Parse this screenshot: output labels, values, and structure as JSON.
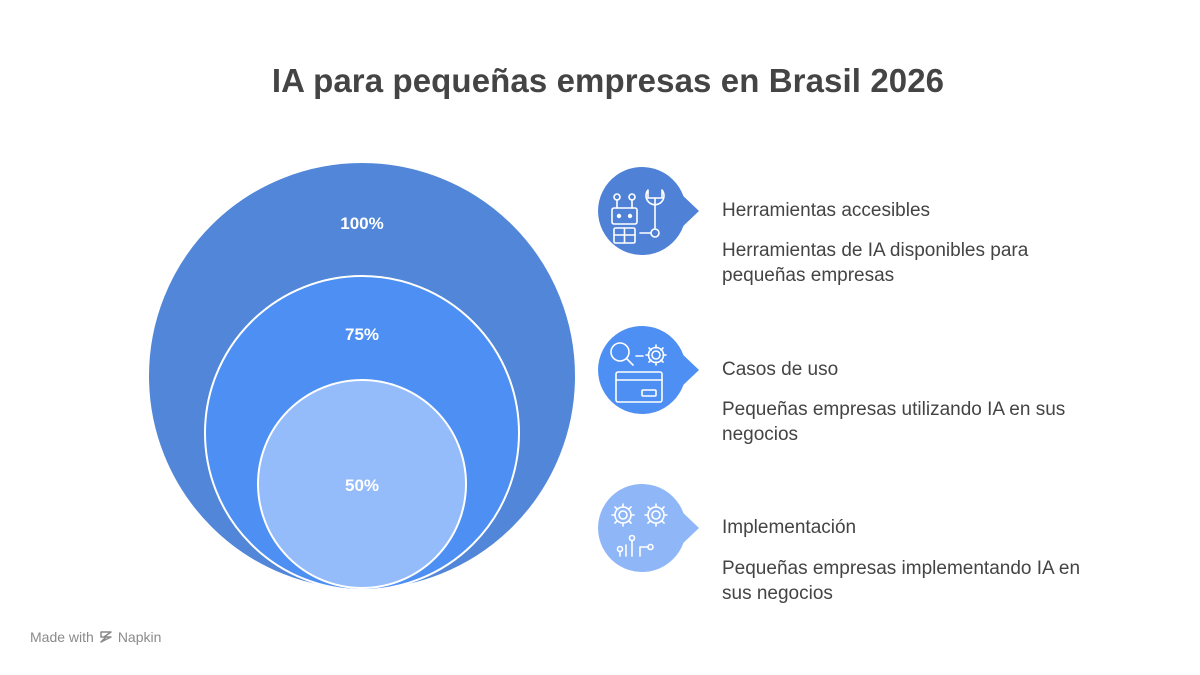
{
  "title": "IA para pequeñas empresas en Brasil 2026",
  "rings": [
    {
      "label": "100%",
      "color": "#5186d8"
    },
    {
      "label": "75%",
      "color": "#4d8ff2"
    },
    {
      "label": "50%",
      "color": "#94bbfa"
    }
  ],
  "items": [
    {
      "title": "Herramientas accesibles",
      "description": "Herramientas de IA disponibles para pequeñas empresas",
      "icon": "robot-wrench-icon",
      "color": "#4f82d6"
    },
    {
      "title": "Casos de uso",
      "description": "Pequeñas empresas utilizando IA en sus negocios",
      "icon": "search-gear-box-icon",
      "color": "#4d8ff2"
    },
    {
      "title": "Implementación",
      "description": "Pequeñas empresas implementando IA en sus negocios",
      "icon": "gears-circuit-icon",
      "color": "#8fb7f8"
    }
  ],
  "footer": {
    "made_with": "Made with",
    "brand": "Napkin"
  }
}
